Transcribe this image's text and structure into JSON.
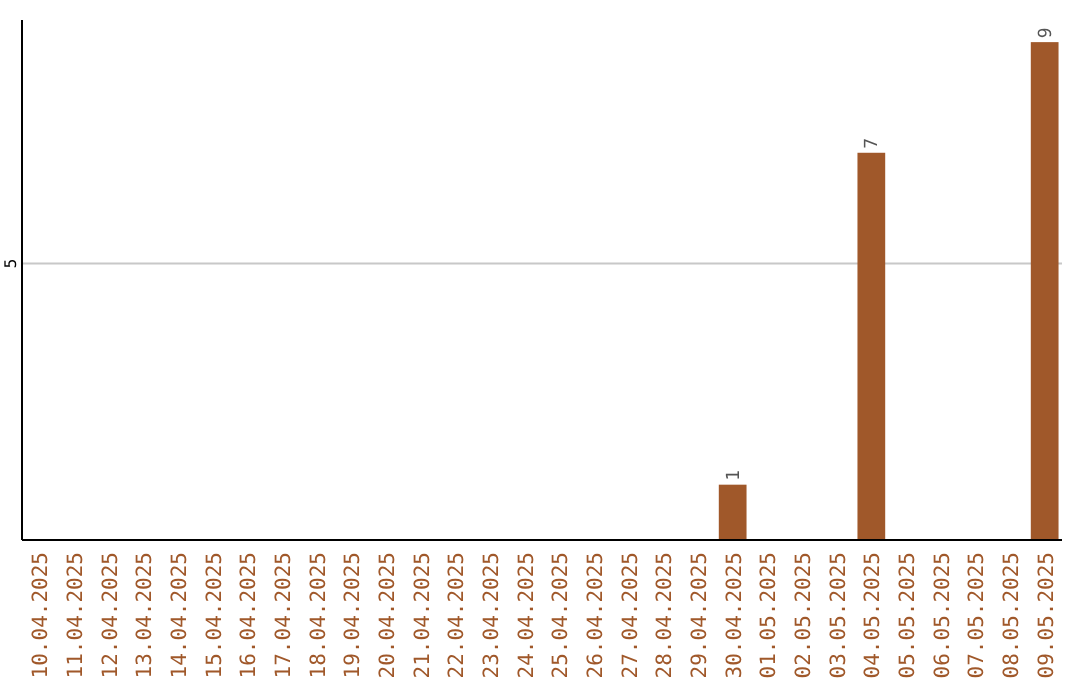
{
  "chart_data": {
    "type": "bar",
    "categories": [
      "10.04.2025",
      "11.04.2025",
      "12.04.2025",
      "13.04.2025",
      "14.04.2025",
      "15.04.2025",
      "16.04.2025",
      "17.04.2025",
      "18.04.2025",
      "19.04.2025",
      "20.04.2025",
      "21.04.2025",
      "22.04.2025",
      "23.04.2025",
      "24.04.2025",
      "25.04.2025",
      "26.04.2025",
      "27.04.2025",
      "28.04.2025",
      "29.04.2025",
      "30.04.2025",
      "01.05.2025",
      "02.05.2025",
      "03.05.2025",
      "04.05.2025",
      "05.05.2025",
      "06.05.2025",
      "07.05.2025",
      "08.05.2025",
      "09.05.2025"
    ],
    "values": [
      null,
      null,
      null,
      null,
      null,
      null,
      null,
      null,
      null,
      null,
      null,
      null,
      null,
      null,
      null,
      null,
      null,
      null,
      null,
      null,
      1,
      null,
      null,
      null,
      7,
      null,
      null,
      null,
      null,
      9
    ],
    "value_labels": [
      null,
      null,
      null,
      null,
      null,
      null,
      null,
      null,
      null,
      null,
      null,
      null,
      null,
      null,
      null,
      null,
      null,
      null,
      null,
      null,
      "1",
      null,
      null,
      null,
      "7",
      null,
      null,
      null,
      null,
      "9"
    ],
    "color": "#a0582a",
    "ylim": [
      0,
      9.4
    ],
    "yticks": [
      5
    ],
    "grid": "y"
  }
}
